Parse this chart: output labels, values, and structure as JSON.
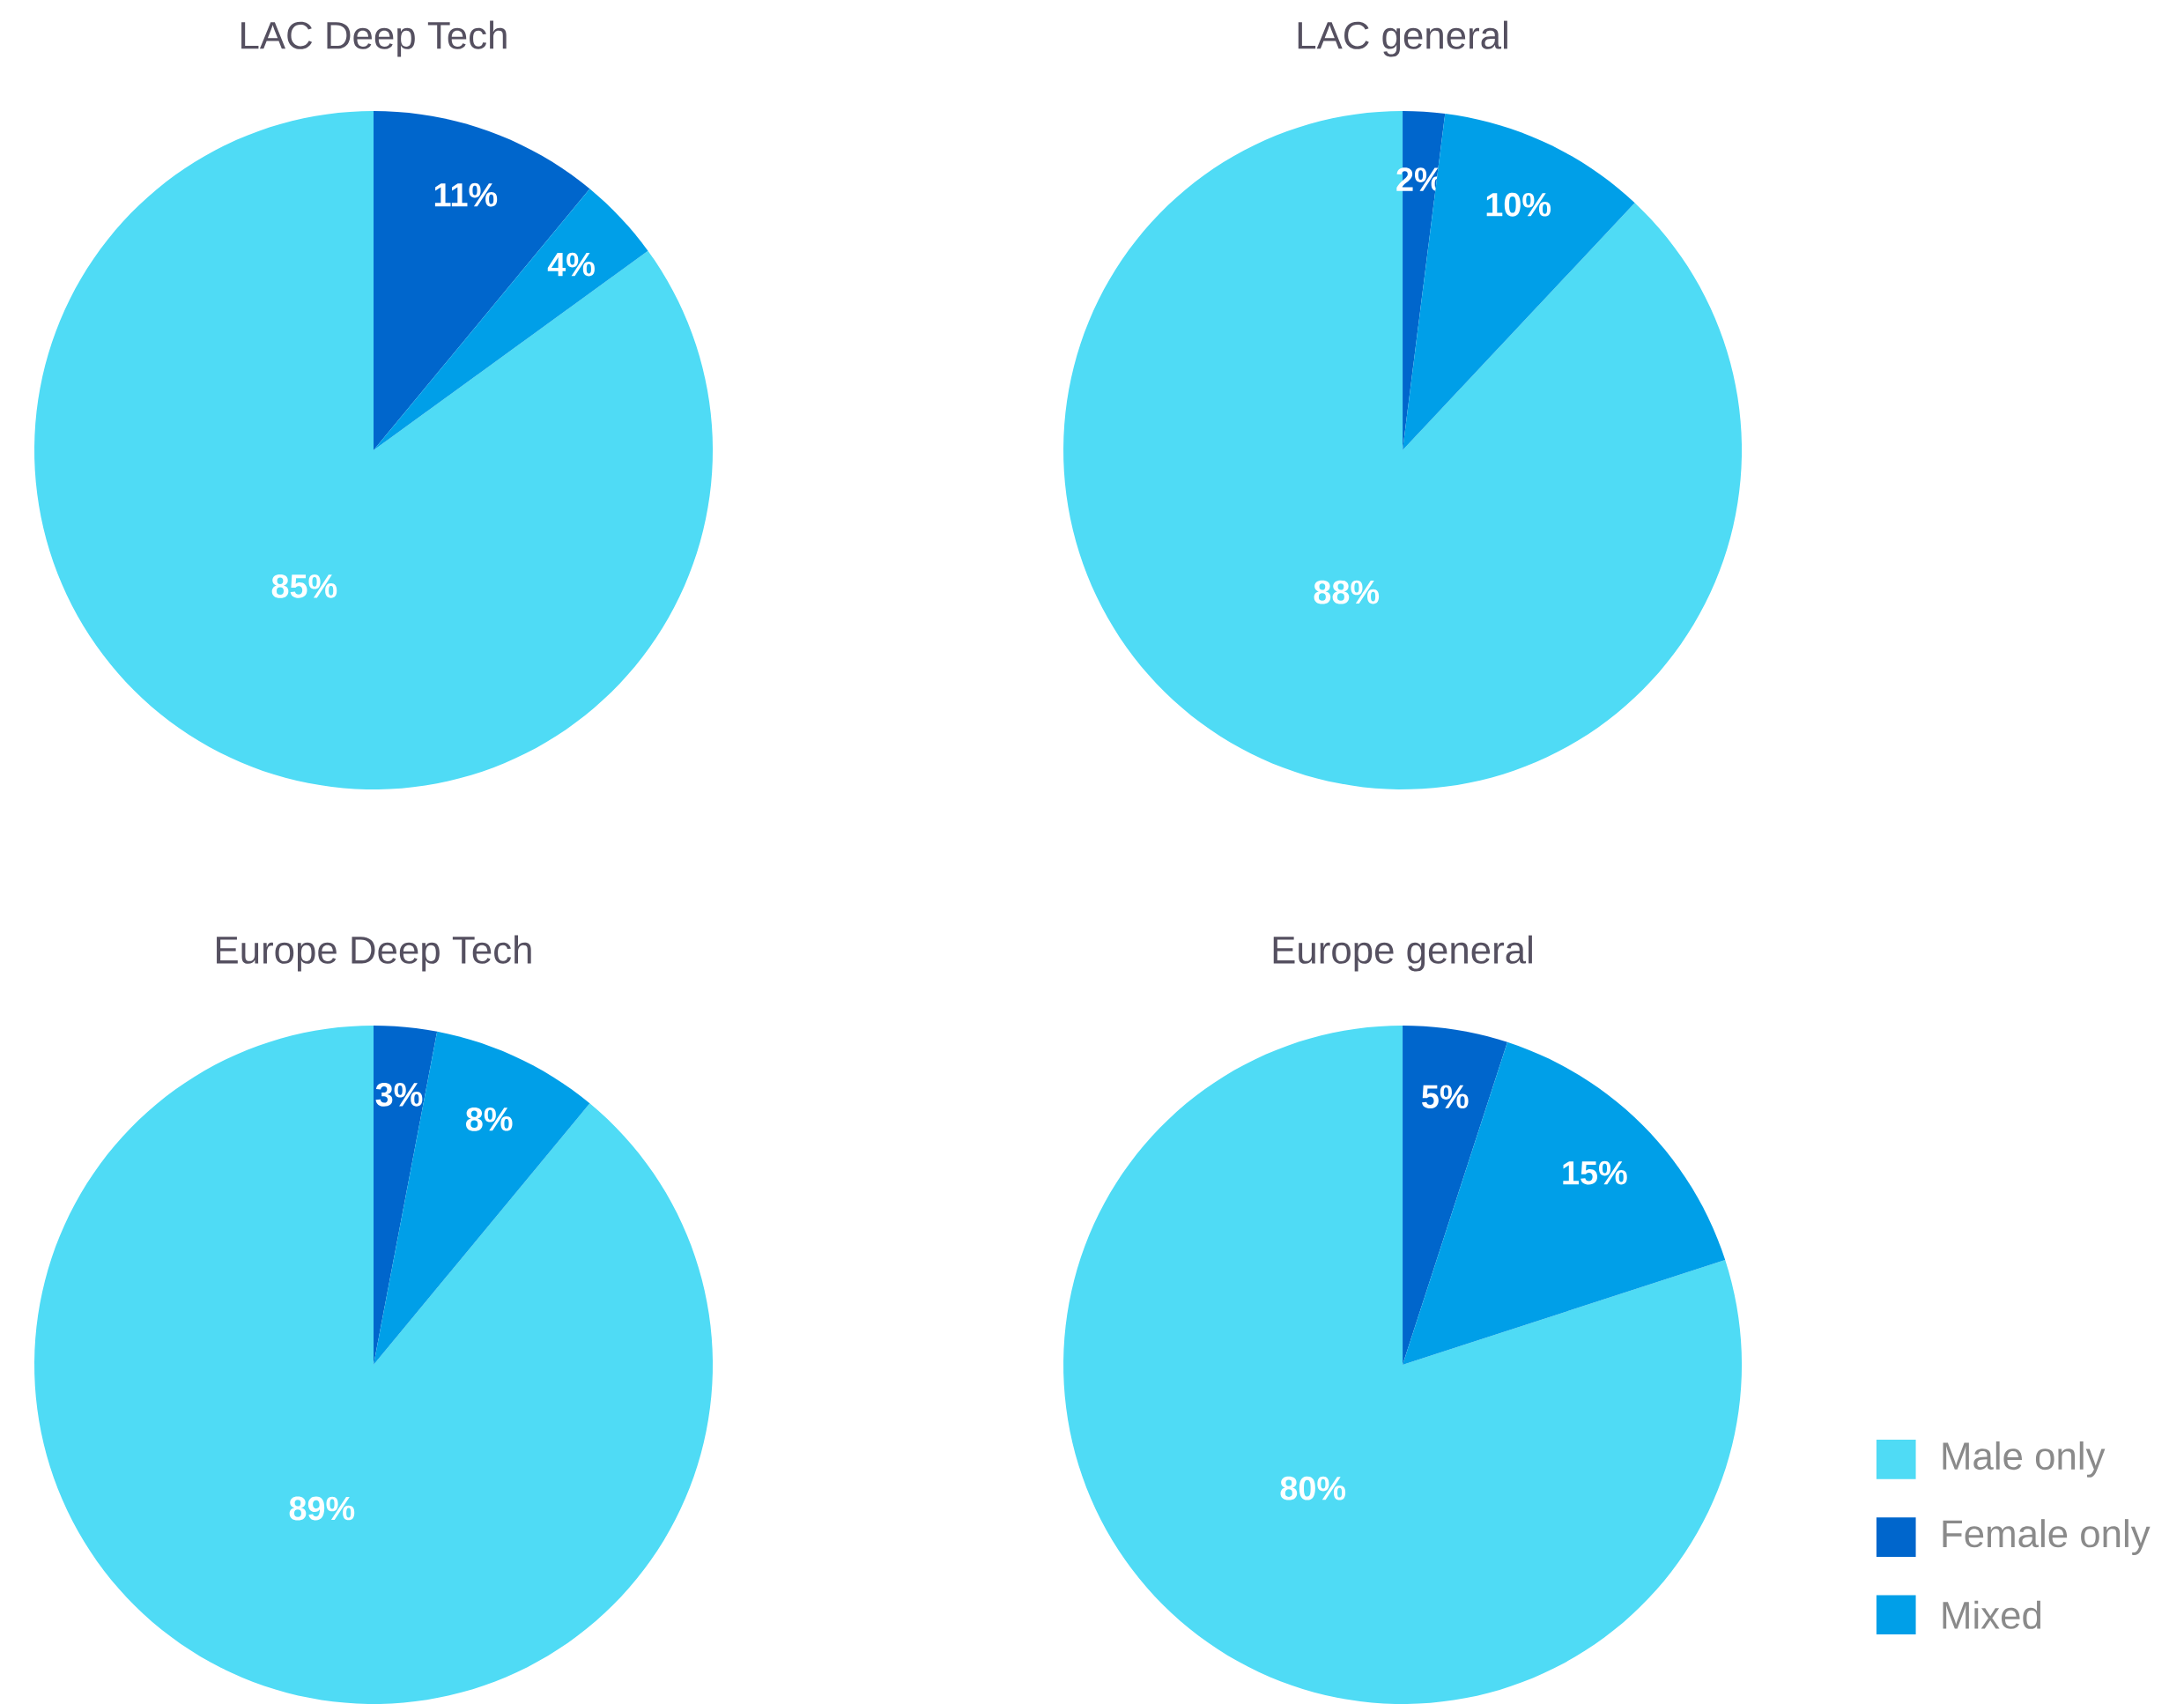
{
  "chart_data": [
    {
      "type": "pie",
      "title": "LAC Deep Tech",
      "categories": [
        null,
        null,
        null
      ],
      "values": [
        85,
        11,
        4
      ],
      "value_labels": [
        "85%",
        "11%",
        "4%"
      ],
      "colors": [
        "#4fdbf5",
        "#0066cc",
        "#009fe8"
      ]
    },
    {
      "type": "pie",
      "title": "LAC general",
      "categories": [
        null,
        null,
        null
      ],
      "values": [
        88,
        2,
        10
      ],
      "value_labels": [
        "88%",
        "2%",
        "10%"
      ],
      "colors": [
        "#4fdbf5",
        "#0066cc",
        "#009fe8"
      ]
    },
    {
      "type": "pie",
      "title": "Europe Deep Tech",
      "categories": [
        null,
        null,
        null
      ],
      "values": [
        89,
        3,
        8
      ],
      "value_labels": [
        "89%",
        "3%",
        "8%"
      ],
      "colors": [
        "#4fdbf5",
        "#0066cc",
        "#009fe8"
      ]
    },
    {
      "type": "pie",
      "title": "Europe general",
      "categories": [
        "Male only",
        "Female only",
        "Mixed"
      ],
      "values": [
        80,
        5,
        15
      ],
      "value_labels": [
        "80%",
        "5%",
        "15%"
      ],
      "colors": [
        "#4fdbf5",
        "#0066cc",
        "#009fe8"
      ],
      "legend": "bottom right"
    }
  ]
}
